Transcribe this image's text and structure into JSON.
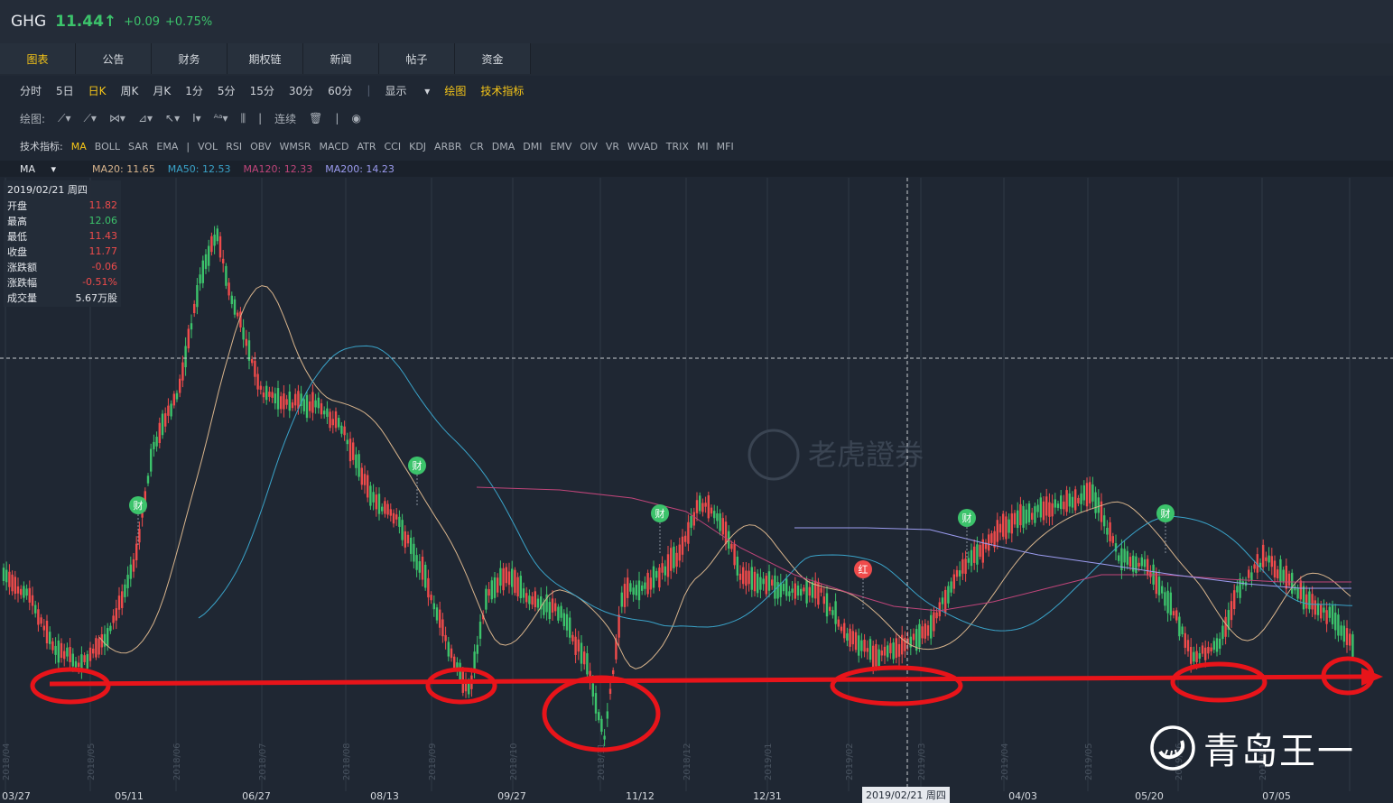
{
  "header": {
    "symbol": "GHG",
    "price": "11.44",
    "arrow": "↑",
    "change": "+0.09",
    "change_pct": "+0.75%"
  },
  "tabs": [
    "图表",
    "公告",
    "财务",
    "期权链",
    "新闻",
    "帖子",
    "资金"
  ],
  "periods": [
    "分时",
    "5日",
    "日K",
    "周K",
    "月K",
    "1分",
    "5分",
    "15分",
    "30分",
    "60分"
  ],
  "period_selected": "日K",
  "display": {
    "show": "显示",
    "draw": "绘图",
    "indicators": "技术指标"
  },
  "draw_tools": {
    "label": "绘图:",
    "continuous": "连续"
  },
  "indicator_row": {
    "label": "技术指标:",
    "items": [
      "MA",
      "BOLL",
      "SAR",
      "EMA",
      "|",
      "VOL",
      "RSI",
      "OBV",
      "WMSR",
      "MACD",
      "ATR",
      "CCI",
      "KDJ",
      "ARBR",
      "CR",
      "DMA",
      "DMI",
      "EMV",
      "OIV",
      "VR",
      "WVAD",
      "TRIX",
      "MI",
      "MFI"
    ],
    "active": "MA"
  },
  "ma_legend": {
    "name": "MA",
    "items": [
      {
        "label": "MA20: 11.65",
        "color": "#d8b48c"
      },
      {
        "label": "MA50: 12.53",
        "color": "#3aa3c9"
      },
      {
        "label": "MA120: 12.33",
        "color": "#c0457a"
      },
      {
        "label": "MA200: 14.23",
        "color": "#9c9cf0"
      }
    ]
  },
  "info": {
    "date": "2019/02/21 周四",
    "rows": [
      {
        "k": "开盘",
        "v": "11.82"
      },
      {
        "k": "最高",
        "v": "12.06"
      },
      {
        "k": "最低",
        "v": "11.43"
      },
      {
        "k": "收盘",
        "v": "11.77"
      },
      {
        "k": "涨跌额",
        "v": "-0.06"
      },
      {
        "k": "涨跌幅",
        "v": "-0.51%"
      },
      {
        "k": "成交量",
        "v": "5.67万股"
      }
    ]
  },
  "x_labels": [
    "03/27",
    "05/11",
    "06/27",
    "08/13",
    "09/27",
    "11/12",
    "12/31",
    "04/03",
    "05/20",
    "07/05"
  ],
  "month_labels": [
    "2018/04",
    "2018/05",
    "2018/06",
    "2018/07",
    "2018/08",
    "2018/09",
    "2018/10",
    "2018/11",
    "2018/12",
    "2019/01",
    "2019/02",
    "2019/03",
    "2019/04",
    "2019/05",
    "2019/06",
    "2019/07"
  ],
  "cursor_label": "2019/02/21 周四",
  "markers": [
    "财",
    "财",
    "财",
    "红",
    "财",
    "财"
  ],
  "watermark": "老虎證券",
  "brand": "青岛王一",
  "colors": {
    "up": "#3cc36b",
    "down": "#ef4b4b",
    "annotation": "#e8141a",
    "accent": "#f5c518"
  }
}
